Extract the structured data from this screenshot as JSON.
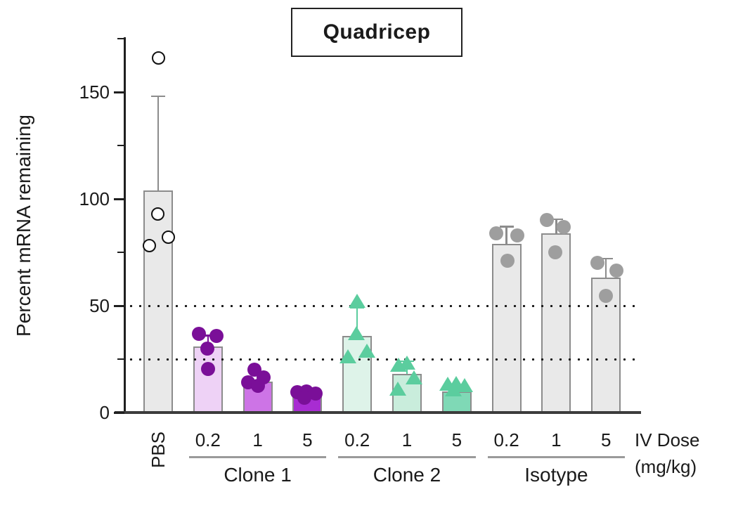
{
  "chart_data": {
    "type": "bar",
    "title": "Quadricep",
    "ylabel": "Percent mRNA remaining",
    "ylim": [
      0,
      175
    ],
    "yticks_major": [
      0,
      50,
      100,
      150
    ],
    "yticks_minor": [
      25,
      75,
      125,
      175
    ],
    "reference_lines_y": [
      50,
      25
    ],
    "grid": "dotted-horizontal",
    "legend_position": "none",
    "x_caption_line1": "IV Dose",
    "x_caption_line2": "(mg/kg)",
    "groups": [
      {
        "label": "PBS",
        "label_rotated": true,
        "underline": false,
        "bars": [
          {
            "dose": "PBS",
            "mean": 104,
            "err_top": 148,
            "fill": "#e9e9e9",
            "err_color": "#8c8c8c",
            "marker": "open-circle",
            "marker_color": "#111111",
            "points": [
              {
                "value": 166,
                "dx": 0
              },
              {
                "value": 93,
                "dx": -1
              },
              {
                "value": 82,
                "dx": 14
              },
              {
                "value": 78,
                "dx": -13
              }
            ]
          }
        ]
      },
      {
        "label": "Clone 1",
        "label_rotated": false,
        "underline": true,
        "bars": [
          {
            "dose": "0.2",
            "mean": 31,
            "err_top": 36,
            "fill": "#eed2f6",
            "err_color": "#7a0f98",
            "marker": "circle",
            "marker_color": "#7a0f98",
            "points": [
              {
                "value": 37,
                "dx": -13
              },
              {
                "value": 36,
                "dx": 12
              },
              {
                "value": 30,
                "dx": -1
              },
              {
                "value": 20.5,
                "dx": 0
              }
            ]
          },
          {
            "dose": "1",
            "mean": 14.5,
            "err_top": null,
            "fill": "#cd74e6",
            "err_color": "#7a0f98",
            "marker": "circle",
            "marker_color": "#7a0f98",
            "points": [
              {
                "value": 20,
                "dx": -5
              },
              {
                "value": 16.5,
                "dx": 8
              },
              {
                "value": 14,
                "dx": -14
              },
              {
                "value": 12.5,
                "dx": 0
              }
            ]
          },
          {
            "dose": "5",
            "mean": 8,
            "err_top": null,
            "fill": "#a82cd2",
            "err_color": "#7a0f98",
            "marker": "circle",
            "marker_color": "#7a0f98",
            "points": [
              {
                "value": 9.5,
                "dx": -14
              },
              {
                "value": 10,
                "dx": -1
              },
              {
                "value": 9,
                "dx": 12
              },
              {
                "value": 7,
                "dx": -4
              }
            ]
          }
        ]
      },
      {
        "label": "Clone 2",
        "label_rotated": false,
        "underline": true,
        "bars": [
          {
            "dose": "0.2",
            "mean": 36,
            "err_top": 49,
            "fill": "#def3e9",
            "err_color": "#5bcd9e",
            "marker": "triangle",
            "marker_color": "#5bcd9e",
            "points": [
              {
                "value": 52,
                "dx": 0
              },
              {
                "value": 37,
                "dx": -1
              },
              {
                "value": 28.5,
                "dx": 14
              },
              {
                "value": 26,
                "dx": -13
              }
            ]
          },
          {
            "dose": "1",
            "mean": 18,
            "err_top": 24,
            "fill": "#c9eddc",
            "err_color": "#5bcd9e",
            "marker": "triangle",
            "marker_color": "#5bcd9e",
            "points": [
              {
                "value": 23,
                "dx": 0
              },
              {
                "value": 22,
                "dx": -12
              },
              {
                "value": 16,
                "dx": 10
              },
              {
                "value": 11,
                "dx": -13
              }
            ]
          },
          {
            "dose": "5",
            "mean": 10,
            "err_top": 11,
            "fill": "#7fd9b6",
            "err_color": "#5bcd9e",
            "marker": "triangle",
            "marker_color": "#5bcd9e",
            "points": [
              {
                "value": 13,
                "dx": -13
              },
              {
                "value": 13.5,
                "dx": -1
              },
              {
                "value": 12.5,
                "dx": 11
              },
              {
                "value": 10.5,
                "dx": -5
              }
            ]
          }
        ]
      },
      {
        "label": "Isotype",
        "label_rotated": false,
        "underline": true,
        "bars": [
          {
            "dose": "0.2",
            "mean": 79,
            "err_top": 87,
            "fill": "#e9e9e9",
            "err_color": "#8c8c8c",
            "marker": "circle",
            "marker_color": "#9e9e9e",
            "points": [
              {
                "value": 84,
                "dx": -15
              },
              {
                "value": 83,
                "dx": 15
              },
              {
                "value": 71,
                "dx": 1
              }
            ]
          },
          {
            "dose": "1",
            "mean": 84,
            "err_top": 90.5,
            "fill": "#e9e9e9",
            "err_color": "#8c8c8c",
            "marker": "circle",
            "marker_color": "#9e9e9e",
            "points": [
              {
                "value": 90,
                "dx": -13
              },
              {
                "value": 87,
                "dx": 11
              },
              {
                "value": 75,
                "dx": -1
              }
            ]
          },
          {
            "dose": "5",
            "mean": 63,
            "err_top": 72,
            "fill": "#e9e9e9",
            "err_color": "#8c8c8c",
            "marker": "circle",
            "marker_color": "#9e9e9e",
            "points": [
              {
                "value": 70,
                "dx": -12
              },
              {
                "value": 66.5,
                "dx": 15
              },
              {
                "value": 54.5,
                "dx": 0
              }
            ]
          }
        ]
      }
    ]
  }
}
